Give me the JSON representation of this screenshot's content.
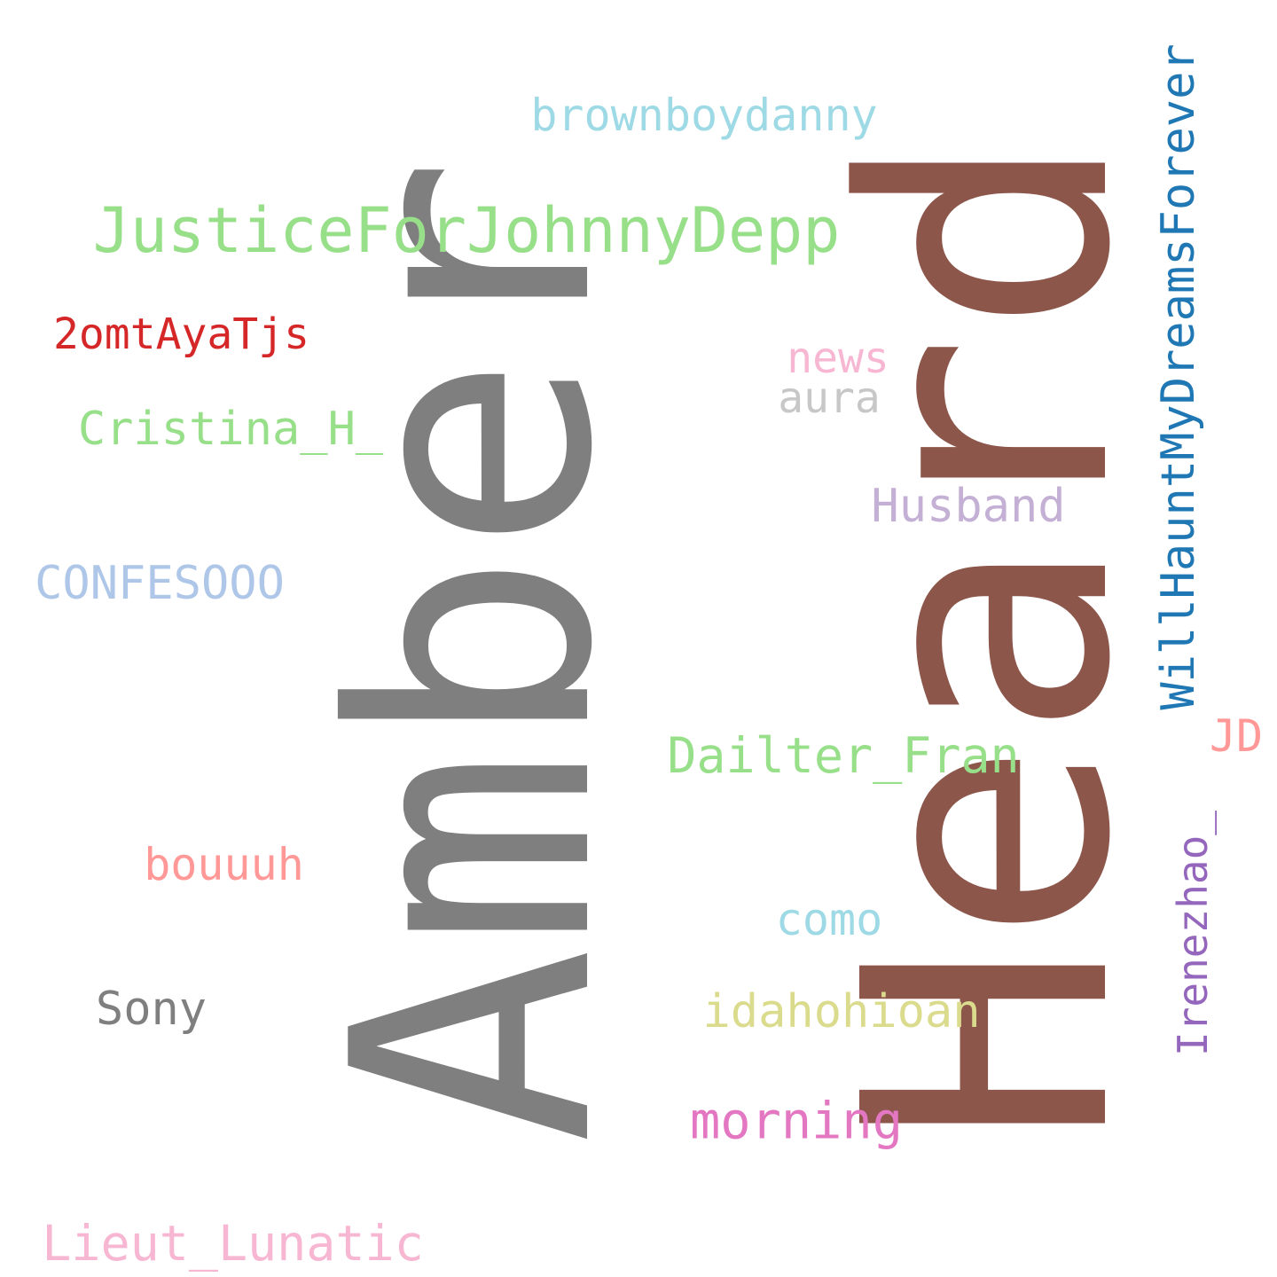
{
  "words": [
    {
      "text": "Amber",
      "color": "#7f7f7f"
    },
    {
      "text": "Heard",
      "color": "#8c564b"
    },
    {
      "text": "JusticeForJohnnyDepp",
      "color": "#98df8a"
    },
    {
      "text": "WillHauntMyDreamsForever",
      "color": "#1f77b4"
    },
    {
      "text": "brownboydanny",
      "color": "#9edae5"
    },
    {
      "text": "2omtAyaTjs",
      "color": "#d62728"
    },
    {
      "text": "news",
      "color": "#f7b6d2"
    },
    {
      "text": "aura",
      "color": "#c7c7c7"
    },
    {
      "text": "Cristina_H_",
      "color": "#98df8a"
    },
    {
      "text": "Husband",
      "color": "#c5b0d5"
    },
    {
      "text": "CONFESOOO",
      "color": "#aec7e8"
    },
    {
      "text": "Dailter_Fran",
      "color": "#98df8a"
    },
    {
      "text": "JD",
      "color": "#ff9896"
    },
    {
      "text": "Irenezhao_",
      "color": "#9467bd"
    },
    {
      "text": "bouuuh",
      "color": "#ff9896"
    },
    {
      "text": "como",
      "color": "#9edae5"
    },
    {
      "text": "Sony",
      "color": "#7f7f7f"
    },
    {
      "text": "idahohioan",
      "color": "#dbdb8d"
    },
    {
      "text": "morning",
      "color": "#e377c2"
    },
    {
      "text": "Lieut_Lunatic",
      "color": "#f7b6d2"
    }
  ]
}
